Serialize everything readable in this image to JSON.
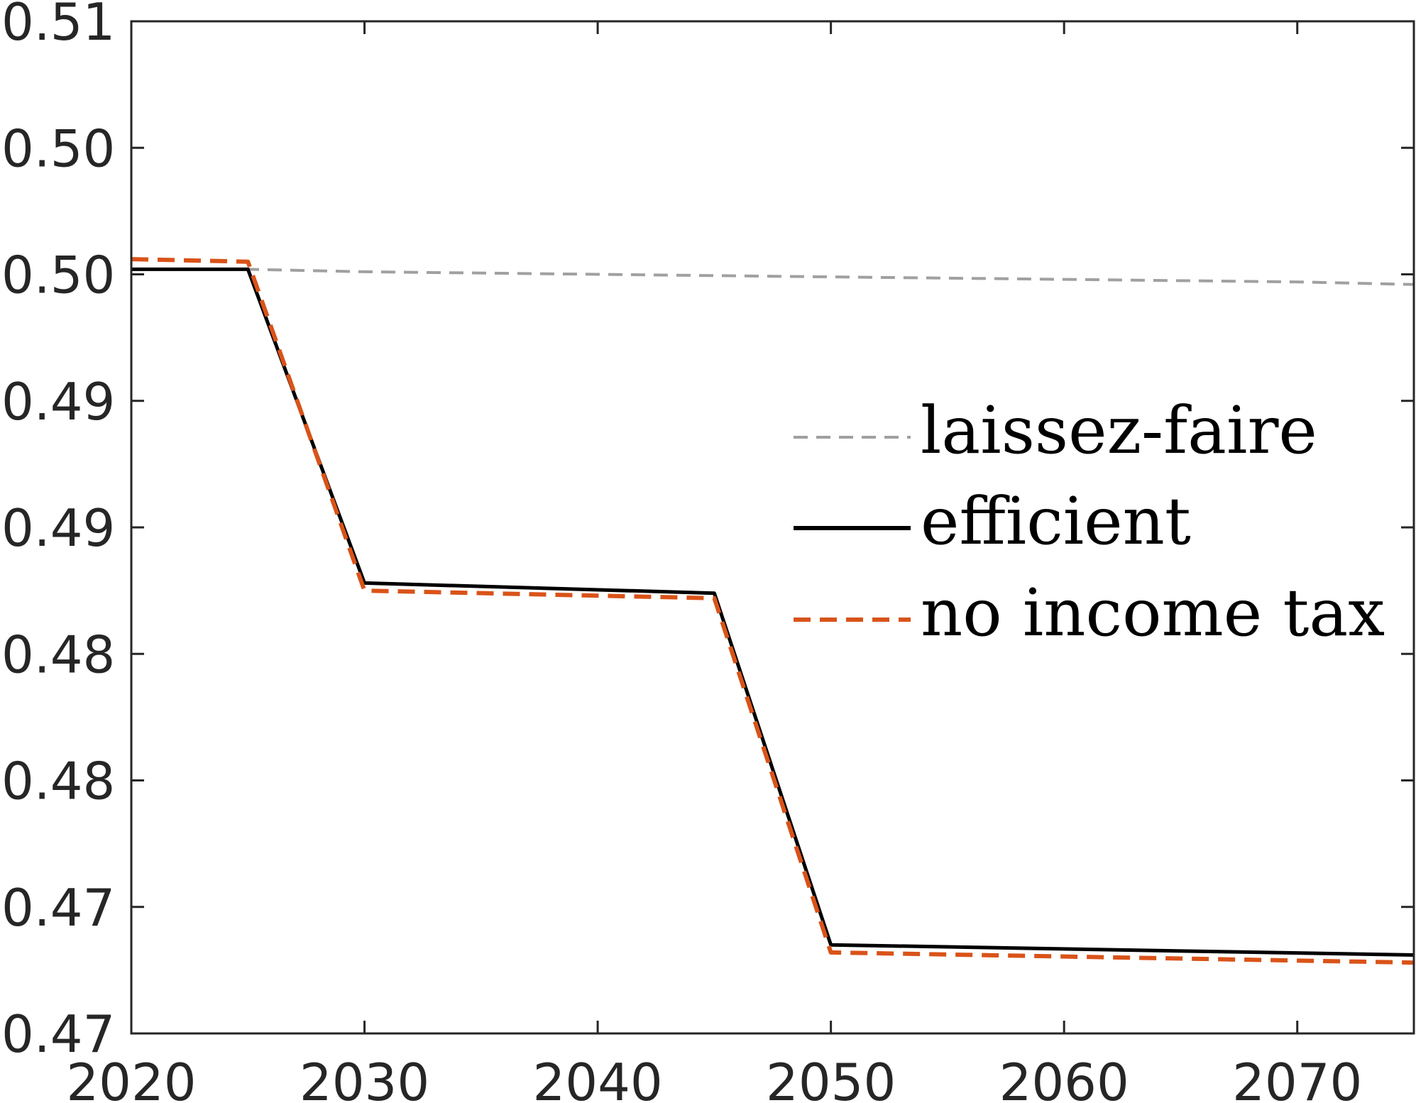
{
  "chart_data": {
    "type": "line",
    "title": "",
    "xlabel": "",
    "ylabel": "",
    "xlim": [
      2020,
      2075
    ],
    "ylim": [
      0.47,
      0.51
    ],
    "x_ticks": [
      2020,
      2030,
      2040,
      2050,
      2060,
      2070
    ],
    "x_tick_labels": [
      "2020",
      "2030",
      "2040",
      "2050",
      "2060",
      "2070"
    ],
    "y_ticks": [
      0.47,
      0.475,
      0.48,
      0.485,
      0.49,
      0.495,
      0.5,
      0.505,
      0.51
    ],
    "y_tick_labels": [
      "0.47",
      "0.47",
      "0.48",
      "0.48",
      "0.49",
      "0.49",
      "0.50",
      "0.50",
      "0.51"
    ],
    "grid": false,
    "legend_position": "center-right",
    "series": [
      {
        "name": "laissez-faire",
        "color": "#a0a0a0",
        "style": "dashed-thin",
        "x": [
          2020,
          2025,
          2030,
          2040,
          2050,
          2060,
          2070,
          2075
        ],
        "y": [
          0.5002,
          0.5002,
          0.5001,
          0.5,
          0.4999,
          0.4998,
          0.4997,
          0.4996
        ]
      },
      {
        "name": "efficient",
        "color": "#000000",
        "style": "solid",
        "x": [
          2020,
          2025,
          2030,
          2045,
          2050,
          2075
        ],
        "y": [
          0.5002,
          0.5002,
          0.4878,
          0.4874,
          0.4735,
          0.4731
        ]
      },
      {
        "name": "no income tax",
        "color": "#d95319",
        "style": "dashed",
        "x": [
          2020,
          2025,
          2030,
          2045,
          2050,
          2075
        ],
        "y": [
          0.5006,
          0.5005,
          0.4875,
          0.4872,
          0.4732,
          0.4728
        ]
      }
    ]
  }
}
